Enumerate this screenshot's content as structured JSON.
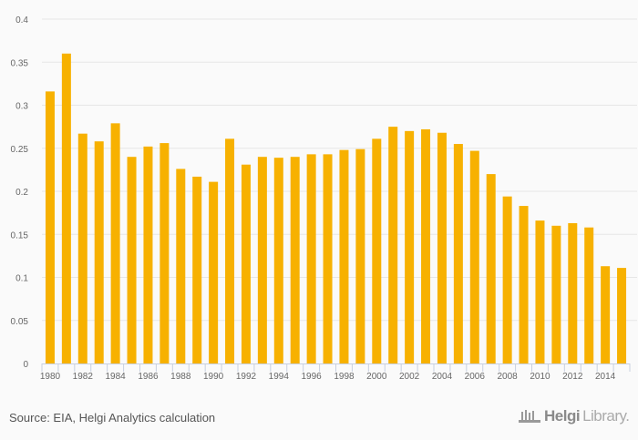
{
  "chart_data": {
    "type": "bar",
    "title": "",
    "xlabel": "",
    "ylabel": "",
    "ylim": [
      0,
      0.4
    ],
    "yticks": [
      "0",
      "0.05",
      "0.1",
      "0.15",
      "0.2",
      "0.25",
      "0.3",
      "0.35",
      "0.4"
    ],
    "xtick_labels": [
      "1980",
      "1982",
      "1984",
      "1986",
      "1988",
      "1990",
      "1992",
      "1994",
      "1996",
      "1998",
      "2000",
      "2002",
      "2004",
      "2006",
      "2008",
      "2010",
      "2012",
      "2014"
    ],
    "categories": [
      1980,
      1981,
      1982,
      1983,
      1984,
      1985,
      1986,
      1987,
      1988,
      1989,
      1990,
      1991,
      1992,
      1993,
      1994,
      1995,
      1996,
      1997,
      1998,
      1999,
      2000,
      2001,
      2002,
      2003,
      2004,
      2005,
      2006,
      2007,
      2008,
      2009,
      2010,
      2011,
      2012,
      2013,
      2014,
      2015
    ],
    "values": [
      0.316,
      0.36,
      0.267,
      0.258,
      0.279,
      0.24,
      0.252,
      0.256,
      0.226,
      0.217,
      0.211,
      0.261,
      0.231,
      0.24,
      0.239,
      0.24,
      0.243,
      0.243,
      0.248,
      0.249,
      0.261,
      0.275,
      0.27,
      0.272,
      0.268,
      0.255,
      0.247,
      0.22,
      0.194,
      0.183,
      0.166,
      0.16,
      0.163,
      0.158,
      0.113,
      0.111
    ],
    "bar_color": "#f7b100",
    "grid": true
  },
  "footer": {
    "source": "Source: EIA, Helgi Analytics calculation",
    "logo_bold": "Helgi",
    "logo_light": "Library."
  }
}
